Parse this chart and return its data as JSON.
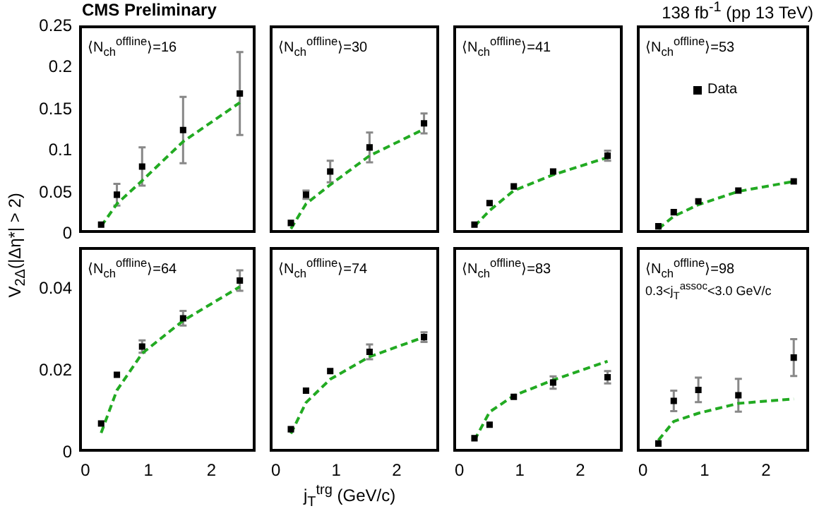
{
  "chart_data": [
    {
      "type": "scatter",
      "title": "CMS Preliminary",
      "ylabel": "V$_{2Δ}$(|Δη*| > 2)",
      "annotations": [
        "⟨N$_{ch}$$^{offline}$⟩=16"
      ],
      "xlim": [
        -0.1,
        2.7
      ],
      "xticks": [
        0,
        1,
        2
      ],
      "ylim": [
        0,
        0.25
      ],
      "yticks": [
        0,
        0.05,
        0.1,
        0.15,
        0.2,
        0.25
      ],
      "tick_labels": "y",
      "grid": false,
      "series": [
        {
          "color": "#000000",
          "marker": "square",
          "x": [
            0.25,
            0.5,
            0.9,
            1.55,
            2.45
          ],
          "values": [
            0.01,
            0.046,
            0.08,
            0.124,
            0.168
          ],
          "errors": [
            null,
            0.013,
            0.023,
            0.04,
            0.05
          ]
        },
        {
          "type": "line",
          "line_style": "dashed",
          "marker": "none",
          "color": "#22aa22",
          "x": [
            0.25,
            0.5,
            0.9,
            1.55,
            2.45
          ],
          "values": [
            0.008,
            0.035,
            0.063,
            0.11,
            0.157
          ]
        }
      ]
    },
    {
      "type": "scatter",
      "annotations": [
        "⟨N$_{ch}$$^{offline}$⟩=30"
      ],
      "xlim": [
        -0.1,
        2.7
      ],
      "xticks": [
        0,
        1,
        2
      ],
      "ylim": [
        0,
        0.25
      ],
      "yticks": [
        0,
        0.05,
        0.1,
        0.15,
        0.2,
        0.25
      ],
      "tick_labels": false,
      "grid": false,
      "series": [
        {
          "color": "#000000",
          "marker": "square",
          "x": [
            0.25,
            0.5,
            0.9,
            1.55,
            2.45
          ],
          "values": [
            0.012,
            0.046,
            0.074,
            0.103,
            0.132
          ],
          "errors": [
            null,
            0.005,
            0.013,
            0.018,
            0.012
          ]
        },
        {
          "type": "line",
          "line_style": "dashed",
          "marker": "none",
          "color": "#22aa22",
          "x": [
            0.25,
            0.5,
            0.9,
            1.55,
            2.45
          ],
          "values": [
            0.005,
            0.035,
            0.058,
            0.093,
            0.125
          ]
        }
      ]
    },
    {
      "type": "scatter",
      "annotations": [
        "⟨N$_{ch}$$^{offline}$⟩=41"
      ],
      "xlim": [
        -0.1,
        2.7
      ],
      "xticks": [
        0,
        1,
        2
      ],
      "ylim": [
        0,
        0.25
      ],
      "yticks": [
        0,
        0.05,
        0.1,
        0.15,
        0.2,
        0.25
      ],
      "tick_labels": false,
      "grid": false,
      "series": [
        {
          "color": "#000000",
          "marker": "square",
          "x": [
            0.25,
            0.5,
            0.9,
            1.55,
            2.45
          ],
          "values": [
            0.01,
            0.036,
            0.056,
            0.074,
            0.093
          ],
          "errors": [
            null,
            null,
            null,
            null,
            0.006
          ]
        },
        {
          "type": "line",
          "line_style": "dashed",
          "marker": "none",
          "color": "#22aa22",
          "x": [
            0.25,
            0.5,
            0.9,
            1.55,
            2.45
          ],
          "values": [
            0.008,
            0.027,
            0.051,
            0.07,
            0.091
          ]
        }
      ]
    },
    {
      "type": "scatter",
      "subtitle": "138 fb$^{-1}$ (pp 13 TeV)",
      "annotations": [
        "⟨N$_{ch}$$^{offline}$⟩=53"
      ],
      "xlim": [
        -0.1,
        2.7
      ],
      "xticks": [
        0,
        1,
        2
      ],
      "ylim": [
        0,
        0.25
      ],
      "yticks": [
        0,
        0.05,
        0.1,
        0.15,
        0.2,
        0.25
      ],
      "tick_labels": false,
      "grid": false,
      "legend": "top",
      "series": [
        {
          "name": "Data",
          "color": "#000000",
          "marker": "square",
          "x": [
            0.25,
            0.5,
            0.9,
            1.55,
            2.45
          ],
          "values": [
            0.008,
            0.025,
            0.038,
            0.051,
            0.062
          ]
        },
        {
          "type": "line",
          "line_style": "dashed",
          "marker": "none",
          "color": "#22aa22",
          "x": [
            0.25,
            0.5,
            0.9,
            1.55,
            2.45
          ],
          "values": [
            0.005,
            0.02,
            0.034,
            0.05,
            0.062
          ]
        }
      ]
    },
    {
      "type": "scatter",
      "annotations": [
        "⟨N$_{ch}$$^{offline}$⟩=64"
      ],
      "xlim": [
        -0.1,
        2.7
      ],
      "xticks": [
        0,
        1,
        2
      ],
      "ylim": [
        0,
        0.05
      ],
      "yticks": [
        0,
        0.02,
        0.04
      ],
      "grid": false,
      "series": [
        {
          "color": "#000000",
          "marker": "square",
          "x": [
            0.25,
            0.5,
            0.9,
            1.55,
            2.45
          ],
          "values": [
            0.0069,
            0.0188,
            0.0257,
            0.0326,
            0.0418
          ],
          "errors": [
            null,
            null,
            0.0015,
            0.0018,
            0.0025
          ]
        },
        {
          "type": "line",
          "line_style": "dashed",
          "marker": "none",
          "color": "#22aa22",
          "x": [
            0.25,
            0.5,
            0.9,
            1.55,
            2.45
          ],
          "values": [
            0.0046,
            0.015,
            0.024,
            0.032,
            0.0403
          ]
        }
      ]
    },
    {
      "type": "scatter",
      "xlabel": "j$_{T}$$^{trg}$ (GeV/c)",
      "annotations": [
        "⟨N$_{ch}$$^{offline}$⟩=74"
      ],
      "xlim": [
        -0.1,
        2.7
      ],
      "xticks": [
        0,
        1,
        2
      ],
      "ylim": [
        0,
        0.05
      ],
      "yticks": [
        0,
        0.02,
        0.04
      ],
      "tick_labels": "x",
      "grid": false,
      "series": [
        {
          "color": "#000000",
          "marker": "square",
          "x": [
            0.25,
            0.5,
            0.9,
            1.55,
            2.45
          ],
          "values": [
            0.0055,
            0.0149,
            0.0197,
            0.0244,
            0.028
          ],
          "errors": [
            null,
            null,
            null,
            0.0018,
            0.0012
          ]
        },
        {
          "type": "line",
          "line_style": "dashed",
          "marker": "none",
          "color": "#22aa22",
          "x": [
            0.25,
            0.5,
            0.9,
            1.55,
            2.45
          ],
          "values": [
            0.0044,
            0.012,
            0.0177,
            0.0232,
            0.028
          ]
        }
      ]
    },
    {
      "type": "scatter",
      "annotations": [
        "⟨N$_{ch}$$^{offline}$⟩=83"
      ],
      "xlim": [
        -0.1,
        2.7
      ],
      "xticks": [
        0,
        1,
        2
      ],
      "ylim": [
        0,
        0.05
      ],
      "yticks": [
        0,
        0.02,
        0.04
      ],
      "tick_labels": "x",
      "grid": false,
      "series": [
        {
          "color": "#000000",
          "marker": "square",
          "x": [
            0.25,
            0.5,
            0.9,
            1.55,
            2.45
          ],
          "values": [
            0.0033,
            0.0066,
            0.0134,
            0.0169,
            0.0182
          ],
          "errors": [
            null,
            null,
            null,
            0.0015,
            0.0015
          ]
        },
        {
          "type": "line",
          "line_style": "dashed",
          "marker": "none",
          "color": "#22aa22",
          "x": [
            0.25,
            0.5,
            0.9,
            1.55,
            2.45
          ],
          "values": [
            0.0028,
            0.0097,
            0.0137,
            0.0175,
            0.0221
          ]
        }
      ]
    },
    {
      "type": "scatter",
      "annotations": [
        "⟨N$_{ch}$$^{offline}$⟩=98",
        "0.3<j$_{T}$$^{assoc}$<3.0 GeV/c"
      ],
      "xlim": [
        -0.1,
        2.7
      ],
      "xticks": [
        0,
        1,
        2
      ],
      "ylim": [
        0,
        0.05
      ],
      "yticks": [
        0,
        0.02,
        0.04
      ],
      "tick_labels": "x",
      "grid": false,
      "series": [
        {
          "color": "#000000",
          "marker": "square",
          "x": [
            0.25,
            0.5,
            0.9,
            1.55,
            2.45
          ],
          "values": [
            0.002,
            0.0124,
            0.0151,
            0.0138,
            0.023
          ],
          "errors": [
            null,
            0.0025,
            0.003,
            0.004,
            0.0045
          ]
        },
        {
          "type": "line",
          "line_style": "dashed",
          "marker": "none",
          "color": "#22aa22",
          "x": [
            0.25,
            0.5,
            0.9,
            1.55,
            2.45
          ],
          "values": [
            0.0028,
            0.0074,
            0.0094,
            0.0118,
            0.0129
          ]
        }
      ]
    }
  ]
}
